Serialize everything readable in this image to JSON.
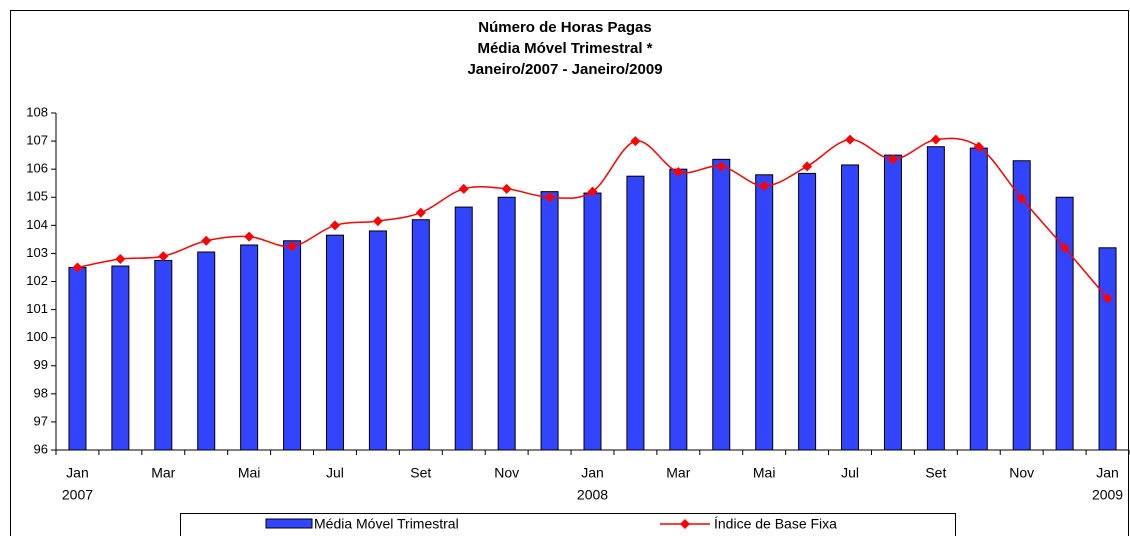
{
  "chart_data": {
    "type": "bar_line",
    "title": [
      "Número de Horas Pagas",
      "Média Móvel Trimestral *",
      "Janeiro/2007 - Janeiro/2009"
    ],
    "categories": [
      "Jan",
      null,
      "Mar",
      null,
      "Mai",
      null,
      "Jul",
      null,
      "Set",
      null,
      "Nov",
      null,
      "Jan",
      null,
      "Mar",
      null,
      "Mai",
      null,
      "Jul",
      null,
      "Set",
      null,
      "Nov",
      null,
      "Jan"
    ],
    "category_years": [
      "2007",
      null,
      null,
      null,
      null,
      null,
      null,
      null,
      null,
      null,
      null,
      null,
      "2008",
      null,
      null,
      null,
      null,
      null,
      null,
      null,
      null,
      null,
      null,
      null,
      "2009"
    ],
    "series": [
      {
        "name": "Média Móvel Trimestral",
        "type": "bar",
        "color": "#3344ff",
        "values": [
          102.5,
          102.55,
          102.75,
          103.05,
          103.3,
          103.45,
          103.65,
          103.8,
          104.2,
          104.65,
          105.0,
          105.2,
          105.15,
          105.75,
          106.0,
          106.35,
          105.8,
          105.85,
          106.15,
          106.5,
          106.8,
          106.75,
          106.3,
          105.0,
          103.2
        ]
      },
      {
        "name": "Índice de Base Fixa",
        "type": "line",
        "color": "#ff0000",
        "values": [
          102.5,
          102.8,
          102.9,
          103.45,
          103.6,
          103.25,
          104.0,
          104.15,
          104.45,
          105.3,
          105.3,
          105.0,
          105.2,
          107.0,
          105.9,
          106.1,
          105.4,
          106.1,
          107.05,
          106.35,
          107.05,
          106.8,
          104.95,
          103.2,
          101.4
        ]
      }
    ],
    "ylim": [
      96,
      108
    ],
    "yticks": [
      96,
      97,
      98,
      99,
      100,
      101,
      102,
      103,
      104,
      105,
      106,
      107,
      108
    ],
    "grid": false,
    "legend": "bottom"
  }
}
